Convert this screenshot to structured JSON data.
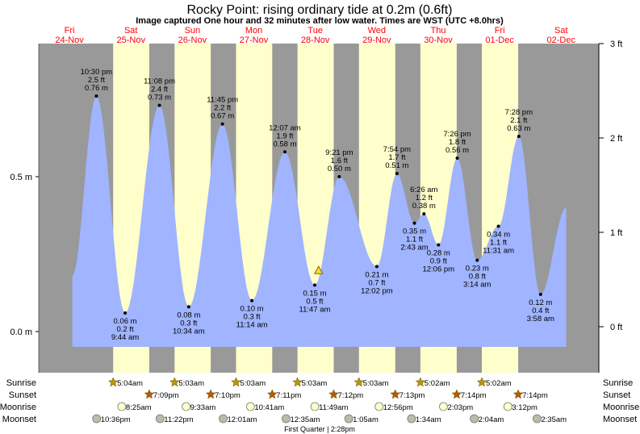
{
  "chart_data": {
    "type": "area",
    "title": "Rocky Point: rising  ordinary tide at 0.2m (0.6ft)",
    "subtitle": "Image captured One hour and 32 minutes after low water. Times are WST (UTC +8.0hrs)",
    "days": [
      {
        "dow": "Fri",
        "date": "24-Nov"
      },
      {
        "dow": "Sat",
        "date": "25-Nov"
      },
      {
        "dow": "Sun",
        "date": "26-Nov"
      },
      {
        "dow": "Mon",
        "date": "27-Nov"
      },
      {
        "dow": "Tue",
        "date": "28-Nov"
      },
      {
        "dow": "Wed",
        "date": "29-Nov"
      },
      {
        "dow": "Thu",
        "date": "30-Nov"
      },
      {
        "dow": "Fri",
        "date": "01-Dec"
      },
      {
        "dow": "Sat",
        "date": "02-Dec"
      }
    ],
    "x_unit": "hours since 24-Nov 00:00",
    "xlim": [
      0,
      219
    ],
    "ylim_m": [
      -0.05,
      0.92
    ],
    "y_ticks_m": [
      {
        "v": 0.0,
        "label": "0.0 m"
      },
      {
        "v": 0.5,
        "label": "0.5 m"
      }
    ],
    "y_ticks_ft": [
      {
        "v": 0,
        "label": "0 ft"
      },
      {
        "v": 1,
        "label": "1 ft"
      },
      {
        "v": 2,
        "label": "2 ft"
      },
      {
        "v": 3,
        "label": "3 ft"
      }
    ],
    "curve_start": {
      "hour": 13.1,
      "m": 0.18
    },
    "curve_end": {
      "hour": 206.0,
      "m": 0.4
    },
    "extremes": [
      {
        "type": "high",
        "hour": 22.5,
        "time": "10:30 pm",
        "ft": "2.5 ft",
        "m": 0.76,
        "m_label": "0.76 m"
      },
      {
        "type": "low",
        "hour": 33.73,
        "time": "9:44 am",
        "ft": "0.2 ft",
        "m": 0.06,
        "m_label": "0.06 m"
      },
      {
        "type": "high",
        "hour": 47.13,
        "time": "11:08 pm",
        "ft": "2.4 ft",
        "m": 0.73,
        "m_label": "0.73 m"
      },
      {
        "type": "low",
        "hour": 58.57,
        "time": "10:34 am",
        "ft": "0.3 ft",
        "m": 0.08,
        "m_label": "0.08 m"
      },
      {
        "type": "high",
        "hour": 71.75,
        "time": "11:45 pm",
        "ft": "2.2 ft",
        "m": 0.67,
        "m_label": "0.67 m"
      },
      {
        "type": "low",
        "hour": 83.23,
        "time": "11:14 am",
        "ft": "0.3 ft",
        "m": 0.1,
        "m_label": "0.10 m"
      },
      {
        "type": "high",
        "hour": 96.12,
        "time": "12:07 am",
        "ft": "1.9 ft",
        "m": 0.58,
        "m_label": "0.58 m"
      },
      {
        "type": "low",
        "hour": 107.78,
        "time": "11:47 am",
        "ft": "0.5 ft",
        "m": 0.15,
        "m_label": "0.15 m"
      },
      {
        "type": "high",
        "hour": 117.35,
        "time": "9:21 pm",
        "ft": "1.6 ft",
        "m": 0.5,
        "m_label": "0.50 m"
      },
      {
        "type": "low",
        "hour": 132.03,
        "time": "12:02 pm",
        "ft": "0.7 ft",
        "m": 0.21,
        "m_label": "0.21 m"
      },
      {
        "type": "high",
        "hour": 139.9,
        "time": "7:54 pm",
        "ft": "1.7 ft",
        "m": 0.51,
        "m_label": "0.51 m"
      },
      {
        "type": "low",
        "hour": 146.72,
        "time": "2:43 am",
        "ft": "1.1 ft",
        "m": 0.35,
        "m_label": "0.35 m"
      },
      {
        "type": "high",
        "hour": 150.43,
        "time": "6:26 am",
        "ft": "1.2 ft",
        "m": 0.38,
        "m_label": "0.38 m"
      },
      {
        "type": "low",
        "hour": 156.1,
        "time": "12:06 pm",
        "ft": "0.9 ft",
        "m": 0.28,
        "m_label": "0.28 m"
      },
      {
        "type": "high",
        "hour": 163.43,
        "time": "7:26 pm",
        "ft": "1.8 ft",
        "m": 0.56,
        "m_label": "0.56 m"
      },
      {
        "type": "low",
        "hour": 171.23,
        "time": "3:14 am",
        "ft": "0.8 ft",
        "m": 0.23,
        "m_label": "0.23 m"
      },
      {
        "type": "low",
        "hour": 179.52,
        "time": "11:31 am",
        "ft": "1.1 ft",
        "m": 0.34,
        "m_label": "0.34 m"
      },
      {
        "type": "high",
        "hour": 187.47,
        "time": "7:28 pm",
        "ft": "2.1 ft",
        "m": 0.63,
        "m_label": "0.63 m"
      },
      {
        "type": "low",
        "hour": 195.97,
        "time": "3:58 am",
        "ft": "0.4 ft",
        "m": 0.12,
        "m_label": "0.12 m"
      }
    ],
    "current_marker": {
      "hour": 109.3,
      "m": 0.2
    },
    "daylight": [
      {
        "rise": 29.07,
        "set": 43.15
      },
      {
        "rise": 53.05,
        "set": 67.17
      },
      {
        "rise": 77.05,
        "set": 91.18
      },
      {
        "rise": 101.05,
        "set": 115.2
      },
      {
        "rise": 125.05,
        "set": 139.22
      },
      {
        "rise": 149.03,
        "set": 163.23
      },
      {
        "rise": 173.03,
        "set": 187.23
      }
    ],
    "rows": {
      "sunrise": {
        "label": "Sunrise",
        "events": [
          {
            "hour": 29.07,
            "time": "5:04am"
          },
          {
            "hour": 53.05,
            "time": "5:03am"
          },
          {
            "hour": 77.05,
            "time": "5:03am"
          },
          {
            "hour": 101.05,
            "time": "5:03am"
          },
          {
            "hour": 125.05,
            "time": "5:03am"
          },
          {
            "hour": 149.03,
            "time": "5:02am"
          },
          {
            "hour": 173.03,
            "time": "5:02am"
          }
        ]
      },
      "sunset": {
        "label": "Sunset",
        "events": [
          {
            "hour": 43.15,
            "time": "7:09pm"
          },
          {
            "hour": 67.17,
            "time": "7:10pm"
          },
          {
            "hour": 91.18,
            "time": "7:11pm"
          },
          {
            "hour": 115.2,
            "time": "7:12pm"
          },
          {
            "hour": 139.22,
            "time": "7:13pm"
          },
          {
            "hour": 163.23,
            "time": "7:14pm"
          },
          {
            "hour": 187.23,
            "time": "7:14pm"
          }
        ]
      },
      "moonrise": {
        "label": "Moonrise",
        "events": [
          {
            "hour": 32.42,
            "time": "8:25am"
          },
          {
            "hour": 57.55,
            "time": "9:33am"
          },
          {
            "hour": 82.68,
            "time": "10:41am"
          },
          {
            "hour": 107.82,
            "time": "11:49am"
          },
          {
            "hour": 132.93,
            "time": "12:56pm"
          },
          {
            "hour": 158.05,
            "time": "2:03pm"
          },
          {
            "hour": 183.2,
            "time": "3:12pm"
          }
        ]
      },
      "moonset": {
        "label": "Moonset",
        "events": [
          {
            "hour": 22.6,
            "time": "10:36pm"
          },
          {
            "hour": 47.37,
            "time": "11:22pm"
          },
          {
            "hour": 72.02,
            "time": "12:01am"
          },
          {
            "hour": 96.58,
            "time": "12:35am"
          },
          {
            "hour": 121.08,
            "time": "1:05am"
          },
          {
            "hour": 145.57,
            "time": "1:34am"
          },
          {
            "hour": 170.07,
            "time": "2:04am"
          },
          {
            "hour": 194.58,
            "time": "2:35am"
          }
        ]
      }
    },
    "moon_phase": "First Quarter | 2:28pm",
    "colors": {
      "night": "#999999",
      "day": "#ffffcc",
      "water": "#a0b4ff",
      "day_label": "#ff0000",
      "sunrise": "#b8960a",
      "sunset": "#b85a00",
      "moonrise": "#ffffcc",
      "moonset": "#bbbbaa"
    }
  }
}
